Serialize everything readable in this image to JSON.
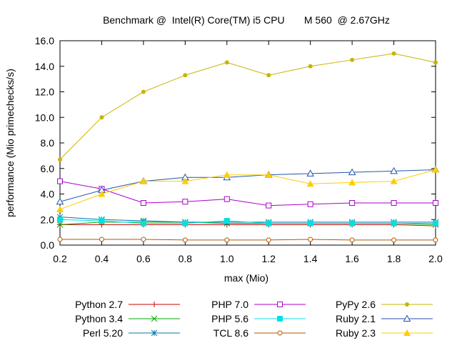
{
  "chart_data": {
    "type": "line",
    "title": "Benchmark @  Intel(R) Core(TM) i5 CPU       M 560  @ 2.67GHz",
    "xlabel": "max (Mio)",
    "ylabel": "performance (Mio primechecks/s)",
    "xlim": [
      0.2,
      2.0
    ],
    "ylim": [
      0,
      16
    ],
    "xticks": [
      "0.2",
      "0.4",
      "0.6",
      "0.8",
      "1.0",
      "1.2",
      "1.4",
      "1.6",
      "1.8",
      "2.0"
    ],
    "yticks": [
      "0.0",
      "2.0",
      "4.0",
      "6.0",
      "8.0",
      "10.0",
      "12.0",
      "14.0",
      "16.0"
    ],
    "grid": false,
    "legend_position": "bottom",
    "x": [
      0.2,
      0.4,
      0.6,
      0.8,
      1.0,
      1.2,
      1.4,
      1.6,
      1.8,
      2.0
    ],
    "series": [
      {
        "name": "Python 2.7",
        "color": "#cc0000",
        "marker": "plus",
        "values": [
          1.6,
          1.6,
          1.6,
          1.6,
          1.6,
          1.6,
          1.6,
          1.6,
          1.6,
          1.5
        ]
      },
      {
        "name": "Python 3.4",
        "color": "#00aa00",
        "marker": "cross",
        "values": [
          1.6,
          1.8,
          1.8,
          1.8,
          1.7,
          1.7,
          1.7,
          1.7,
          1.7,
          1.6
        ]
      },
      {
        "name": "Perl 5.20",
        "color": "#0077aa",
        "marker": "star",
        "values": [
          2.2,
          2.0,
          1.9,
          1.8,
          1.8,
          1.8,
          1.8,
          1.8,
          1.8,
          1.8
        ]
      },
      {
        "name": "PHP 7.0",
        "color": "#aa00cc",
        "marker": "square-open",
        "values": [
          5.0,
          4.4,
          3.3,
          3.4,
          3.6,
          3.1,
          3.2,
          3.3,
          3.3,
          3.3
        ]
      },
      {
        "name": "PHP 5.6",
        "color": "#00e0e0",
        "marker": "square-filled",
        "values": [
          2.0,
          1.9,
          1.7,
          1.7,
          1.9,
          1.7,
          1.7,
          1.7,
          1.7,
          1.7
        ]
      },
      {
        "name": "TCL 8.6",
        "color": "#b35900",
        "marker": "circle-open",
        "values": [
          0.45,
          0.45,
          0.45,
          0.4,
          0.4,
          0.4,
          0.45,
          0.4,
          0.4,
          0.4
        ]
      },
      {
        "name": "PyPy 2.6",
        "color": "#c8b400",
        "marker": "circle-filled",
        "values": [
          6.7,
          10.0,
          12.0,
          13.3,
          14.3,
          13.3,
          14.0,
          14.5,
          15.0,
          14.3
        ]
      },
      {
        "name": "Ruby 2.1",
        "color": "#2255aa",
        "marker": "triangle-open",
        "values": [
          3.4,
          4.3,
          5.0,
          5.3,
          5.3,
          5.5,
          5.6,
          5.7,
          5.8,
          5.9
        ]
      },
      {
        "name": "Ruby 2.3",
        "color": "#ffcc00",
        "marker": "triangle-filled",
        "values": [
          2.8,
          4.0,
          5.0,
          5.0,
          5.5,
          5.5,
          4.8,
          4.9,
          5.0,
          5.9
        ]
      }
    ]
  }
}
